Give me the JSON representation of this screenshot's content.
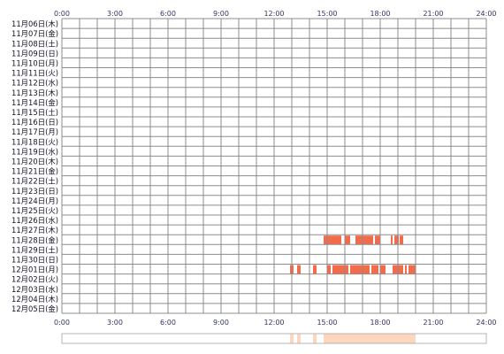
{
  "chart_data": {
    "type": "heatmap",
    "x_ticks": [
      "0:00",
      "3:00",
      "6:00",
      "9:00",
      "12:00",
      "15:00",
      "18:00",
      "21:00",
      "24:00"
    ],
    "xlim": [
      0,
      24
    ],
    "rows": [
      "11月06日(木)",
      "11月07日(金)",
      "11月08日(土)",
      "11月09日(日)",
      "11月10日(月)",
      "11月11日(火)",
      "11月12日(水)",
      "11月13日(木)",
      "11月14日(金)",
      "11月15日(土)",
      "11月16日(日)",
      "11月17日(月)",
      "11月18日(火)",
      "11月19日(水)",
      "11月20日(木)",
      "11月21日(金)",
      "11月22日(土)",
      "11月23日(日)",
      "11月24日(月)",
      "11月25日(火)",
      "11月26日(水)",
      "11月27日(木)",
      "11月28日(金)",
      "11月29日(土)",
      "11月30日(日)",
      "12月01日(月)",
      "12月02日(火)",
      "12月03日(水)",
      "12月04日(木)",
      "12月05日(金)"
    ],
    "grid": true,
    "active_color": "#f26b4b",
    "summary_color": "#fcd6bd",
    "activity": [
      {
        "row": "11月28日(金)",
        "segments": [
          [
            14.8,
            15.8
          ],
          [
            16.0,
            16.3
          ],
          [
            16.6,
            17.6
          ],
          [
            17.7,
            18.0
          ],
          [
            18.6,
            18.7
          ],
          [
            18.8,
            19.05
          ],
          [
            19.1,
            19.3
          ]
        ]
      },
      {
        "row": "12月01日(月)",
        "segments": [
          [
            12.9,
            13.1
          ],
          [
            13.3,
            13.5
          ],
          [
            14.2,
            14.4
          ],
          [
            15.0,
            15.2
          ],
          [
            15.3,
            16.2
          ],
          [
            16.3,
            17.4
          ],
          [
            17.5,
            17.9
          ],
          [
            18.0,
            18.3
          ],
          [
            18.7,
            19.3
          ],
          [
            19.4,
            19.5
          ],
          [
            19.6,
            20.0
          ]
        ]
      }
    ],
    "summary": [
      [
        12.9,
        13.1
      ],
      [
        13.3,
        13.5
      ],
      [
        14.2,
        14.4
      ],
      [
        14.8,
        20.0
      ]
    ]
  }
}
